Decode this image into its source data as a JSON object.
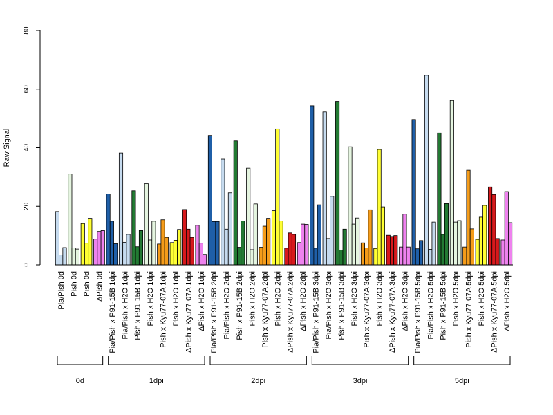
{
  "chart_data": {
    "type": "bar",
    "ylabel": "Raw Signal",
    "ylim": [
      0,
      80
    ],
    "yticks": [
      0,
      20,
      40,
      60,
      80
    ],
    "grid": false,
    "categories": [
      "Pia/Pish 0d",
      "Pish 0d",
      "Pish 0d",
      "ΔPish 0d",
      "Pia/Pish x P91-15B 1dpi",
      "Pia/Pish x H2O 1dpi",
      "Pish x P91-15B 1dpi",
      "Pish x H2O 1dpi",
      "Pish x Kyu77-07A 1dpi",
      "Pish x H2O 1dpi",
      "ΔPish x Kyu77-07A 1dpi",
      "ΔPish x H2O 1dpi",
      "Pia/Pish x P91-15B 2dpi",
      "Pia/Pish x H2O 2dpi",
      "Pish x P91-15B 2dpi",
      "Pish x H2O 2dpi",
      "Pish x Kyu77-07A 2dpi",
      "Pish x H2O 2dpi",
      "ΔPish x Kyu77-07A 2dpi",
      "ΔPish x H2O 2dpi",
      "Pia/Pish x P91-15B 3dpi",
      "Pia/Pish x H2O 3dpi",
      "Pish x P91-15B 3dpi",
      "Pish x H2O 3dpi",
      "Pish x Kyu77-07A 3dpi",
      "Pish x H2O 3dpi",
      "ΔPish x Kyu77-07A 3dpi",
      "ΔPish x H2O 3dpi",
      "Pia/Pish x P91-15B 5dpi",
      "Pia/Pish x H2O 5dpi",
      "Pish x P91-15B 5dpi",
      "Pish x H2O 5dpi",
      "Pish x Kyu77-07A 5dpi",
      "Pish x H2O 5dpi",
      "ΔPish x Kyu77-07A 5dpi",
      "ΔPish x H2O 5dpi"
    ],
    "colors": [
      "#c6dbef",
      "#e5f5e0",
      "#ffff33",
      "#ee82ee",
      "#1f5fa8",
      "#c6dbef",
      "#237a33",
      "#e5f5e0",
      "#f59c1a",
      "#ffff33",
      "#d7191c",
      "#ee82ee",
      "#1f5fa8",
      "#c6dbef",
      "#237a33",
      "#e5f5e0",
      "#f59c1a",
      "#ffff33",
      "#d7191c",
      "#ee82ee",
      "#1f5fa8",
      "#c6dbef",
      "#237a33",
      "#e5f5e0",
      "#f59c1a",
      "#ffff33",
      "#d7191c",
      "#ee82ee",
      "#1f5fa8",
      "#c6dbef",
      "#237a33",
      "#e5f5e0",
      "#f59c1a",
      "#ffff33",
      "#d7191c",
      "#ee82ee"
    ],
    "replicates": [
      [
        18.2,
        3.4,
        5.9
      ],
      [
        31.0,
        5.8,
        5.4
      ],
      [
        14.1,
        7.4,
        15.9
      ],
      [
        8.8,
        11.4,
        11.7
      ],
      [
        24.2,
        14.9,
        7.2
      ],
      [
        38.2,
        7.7,
        10.4
      ],
      [
        25.3,
        6.2,
        11.7
      ],
      [
        27.7,
        8.5,
        14.9
      ],
      [
        7.1,
        15.4,
        9.4
      ],
      [
        7.6,
        8.4,
        12.1
      ],
      [
        18.9,
        12.2,
        9.4
      ],
      [
        13.5,
        7.4,
        3.6
      ],
      [
        44.2,
        14.8,
        14.8
      ],
      [
        36.1,
        12.2,
        24.6
      ],
      [
        42.3,
        6.0,
        15.0
      ],
      [
        33.0,
        5.2,
        20.8
      ],
      [
        6.0,
        13.2,
        15.9
      ],
      [
        18.5,
        46.4,
        15.0
      ],
      [
        5.7,
        10.9,
        10.4
      ],
      [
        7.6,
        13.9,
        13.8
      ],
      [
        54.3,
        5.7,
        20.5
      ],
      [
        52.2,
        9.0,
        23.4
      ],
      [
        55.8,
        5.1,
        12.2
      ],
      [
        40.3,
        13.9,
        16.0
      ],
      [
        7.5,
        5.8,
        18.8
      ],
      [
        5.6,
        39.4,
        19.8
      ],
      [
        10.1,
        9.7,
        10.0
      ],
      [
        6.1,
        17.3,
        6.1
      ],
      [
        49.6,
        5.5,
        8.3
      ],
      [
        64.7,
        5.3,
        14.6
      ],
      [
        45.0,
        10.4,
        20.9
      ],
      [
        56.1,
        14.6,
        15.1
      ],
      [
        6.1,
        32.3,
        12.3
      ],
      [
        8.7,
        16.3,
        20.3
      ],
      [
        26.6,
        24.0,
        9.0
      ],
      [
        8.5,
        25.0,
        14.4
      ]
    ],
    "groups": [
      {
        "label": "0d",
        "start": 0,
        "end": 3
      },
      {
        "label": "1dpi",
        "start": 4,
        "end": 11
      },
      {
        "label": "2dpi",
        "start": 12,
        "end": 19
      },
      {
        "label": "3dpi",
        "start": 20,
        "end": 27
      },
      {
        "label": "5dpi",
        "start": 28,
        "end": 35
      }
    ]
  }
}
